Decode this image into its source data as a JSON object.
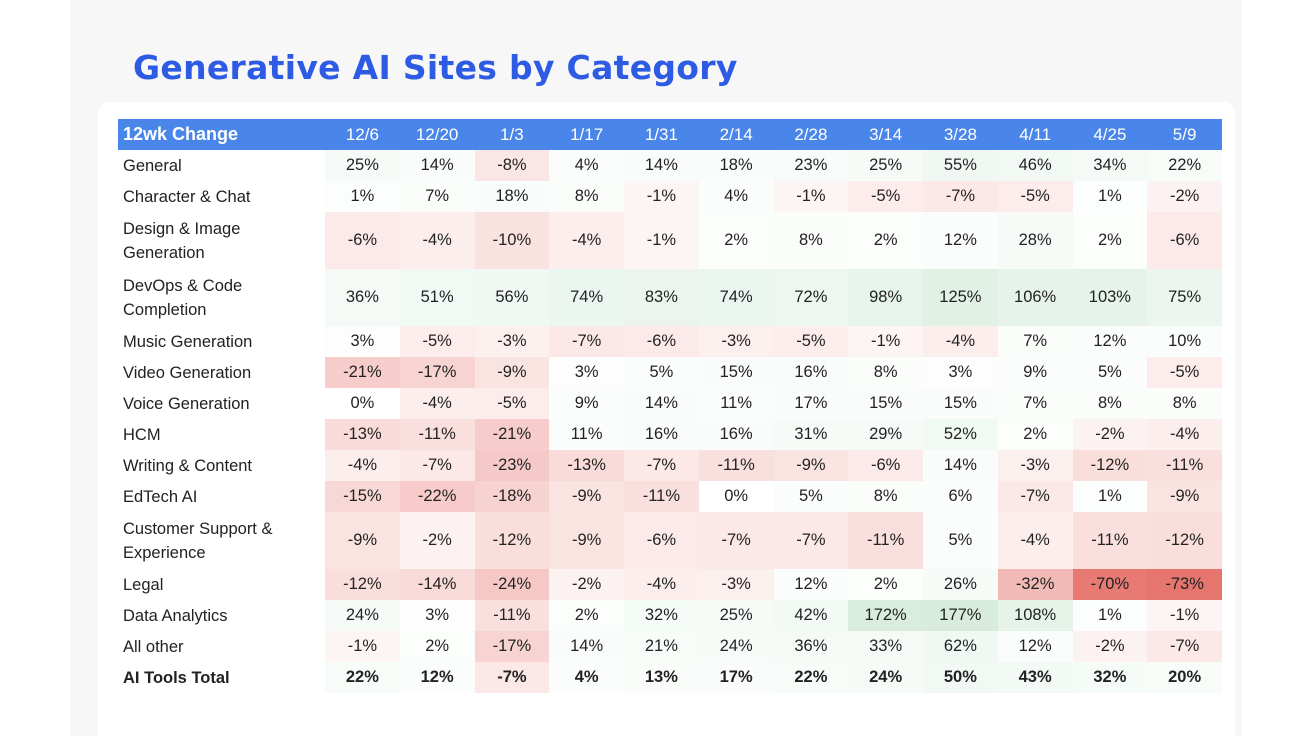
{
  "title": "Generative AI Sites by Category",
  "chart_data": {
    "type": "table",
    "title": "Generative AI Sites by Category",
    "corner_label": "12wk Change",
    "columns": [
      "12/6",
      "12/20",
      "1/3",
      "1/17",
      "1/31",
      "2/14",
      "2/28",
      "3/14",
      "3/28",
      "4/11",
      "4/25",
      "5/9"
    ],
    "rows": [
      {
        "label": "General",
        "values": [
          "25%",
          "14%",
          "-8%",
          "4%",
          "14%",
          "18%",
          "23%",
          "25%",
          "55%",
          "46%",
          "34%",
          "22%"
        ]
      },
      {
        "label": "Character & Chat",
        "values": [
          "1%",
          "7%",
          "18%",
          "8%",
          "-1%",
          "4%",
          "-1%",
          "-5%",
          "-7%",
          "-5%",
          "1%",
          "-2%"
        ]
      },
      {
        "label": "Design & Image Generation",
        "values": [
          "-6%",
          "-4%",
          "-10%",
          "-4%",
          "-1%",
          "2%",
          "8%",
          "2%",
          "12%",
          "28%",
          "2%",
          "-6%"
        ]
      },
      {
        "label": "DevOps & Code Completion",
        "values": [
          "36%",
          "51%",
          "56%",
          "74%",
          "83%",
          "74%",
          "72%",
          "98%",
          "125%",
          "106%",
          "103%",
          "75%"
        ]
      },
      {
        "label": "Music Generation",
        "values": [
          "3%",
          "-5%",
          "-3%",
          "-7%",
          "-6%",
          "-3%",
          "-5%",
          "-1%",
          "-4%",
          "7%",
          "12%",
          "10%"
        ]
      },
      {
        "label": "Video Generation",
        "values": [
          "-21%",
          "-17%",
          "-9%",
          "3%",
          "5%",
          "15%",
          "16%",
          "8%",
          "3%",
          "9%",
          "5%",
          "-5%"
        ]
      },
      {
        "label": "Voice Generation",
        "values": [
          "0%",
          "-4%",
          "-5%",
          "9%",
          "14%",
          "11%",
          "17%",
          "15%",
          "15%",
          "7%",
          "8%",
          "8%"
        ]
      },
      {
        "label": "HCM",
        "values": [
          "-13%",
          "-11%",
          "-21%",
          "11%",
          "16%",
          "16%",
          "31%",
          "29%",
          "52%",
          "2%",
          "-2%",
          "-4%"
        ]
      },
      {
        "label": "Writing & Content",
        "values": [
          "-4%",
          "-7%",
          "-23%",
          "-13%",
          "-7%",
          "-11%",
          "-9%",
          "-6%",
          "14%",
          "-3%",
          "-12%",
          "-11%"
        ]
      },
      {
        "label": "EdTech AI",
        "values": [
          "-15%",
          "-22%",
          "-18%",
          "-9%",
          "-11%",
          "0%",
          "5%",
          "8%",
          "6%",
          "-7%",
          "1%",
          "-9%"
        ]
      },
      {
        "label": "Customer Support & Experience",
        "values": [
          "-9%",
          "-2%",
          "-12%",
          "-9%",
          "-6%",
          "-7%",
          "-7%",
          "-11%",
          "5%",
          "-4%",
          "-11%",
          "-12%"
        ]
      },
      {
        "label": "Legal",
        "values": [
          "-12%",
          "-14%",
          "-24%",
          "-2%",
          "-4%",
          "-3%",
          "12%",
          "2%",
          "26%",
          "-32%",
          "-70%",
          "-73%"
        ]
      },
      {
        "label": "Data Analytics",
        "values": [
          "24%",
          "3%",
          "-11%",
          "2%",
          "32%",
          "25%",
          "42%",
          "172%",
          "177%",
          "108%",
          "1%",
          "-1%"
        ]
      },
      {
        "label": "All other",
        "values": [
          "-1%",
          "2%",
          "-17%",
          "14%",
          "21%",
          "24%",
          "36%",
          "33%",
          "62%",
          "12%",
          "-2%",
          "-7%"
        ]
      },
      {
        "label": "AI Tools Total",
        "values": [
          "22%",
          "12%",
          "-7%",
          "4%",
          "13%",
          "17%",
          "22%",
          "24%",
          "50%",
          "43%",
          "32%",
          "20%"
        ],
        "total": true
      }
    ],
    "colors": {
      "header_bg": "#4a86ea",
      "positive": "#78c08e",
      "negative": "#e46a62",
      "title": "#2d5be3"
    }
  }
}
